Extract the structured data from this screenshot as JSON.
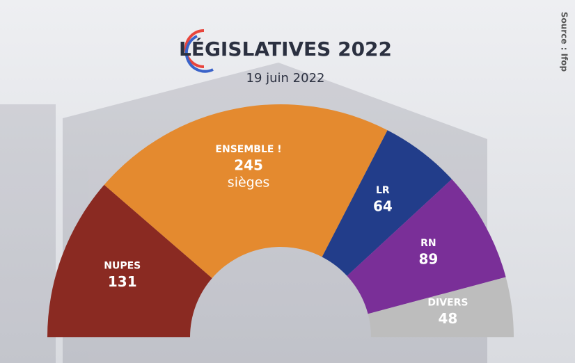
{
  "chart_data": {
    "type": "semicircle-donut",
    "title": "LÉGISLATIVES 2022",
    "subtitle": "19 juin 2022",
    "source": "Source : Ifop",
    "value_unit": "sièges",
    "categories": [
      "NUPES",
      "ENSEMBLE !",
      "LR",
      "RN",
      "DIVERS"
    ],
    "values": [
      131,
      245,
      64,
      89,
      48
    ],
    "colors": [
      "#8a2a22",
      "#e48a2f",
      "#223d8a",
      "#7a2f98",
      "#bdbdbd"
    ],
    "unit_on": 1
  }
}
